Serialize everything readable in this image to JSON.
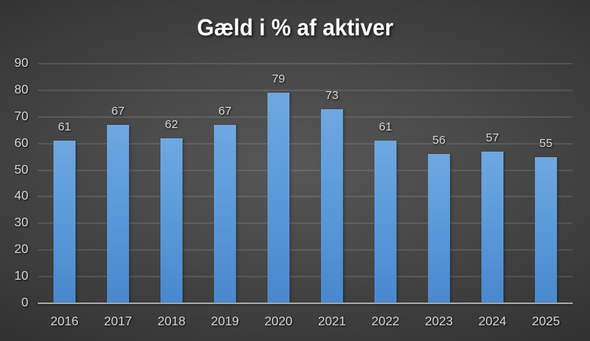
{
  "chart_data": {
    "type": "bar",
    "title": "Gæld i % af aktiver",
    "categories": [
      "2016",
      "2017",
      "2018",
      "2019",
      "2020",
      "2021",
      "2022",
      "2023",
      "2024",
      "2025"
    ],
    "values": [
      61,
      67,
      62,
      67,
      79,
      73,
      61,
      56,
      57,
      55
    ],
    "xlabel": "",
    "ylabel": "",
    "ylim": [
      0,
      90
    ],
    "yticks": [
      0,
      10,
      20,
      30,
      40,
      50,
      60,
      70,
      80,
      90
    ],
    "grid": true,
    "legend": false,
    "data_labels": true
  },
  "colors": {
    "background_center": "#575757",
    "background_edge": "#242424",
    "bar_top": "#6fa7e1",
    "bar_bottom": "#4a87cd",
    "gridline": "rgba(255,255,255,0.10)",
    "axis_line": "#a6a6a6",
    "tick_label": "#d6d6d6",
    "data_label": "#d6d6d6",
    "title": "#ffffff"
  }
}
